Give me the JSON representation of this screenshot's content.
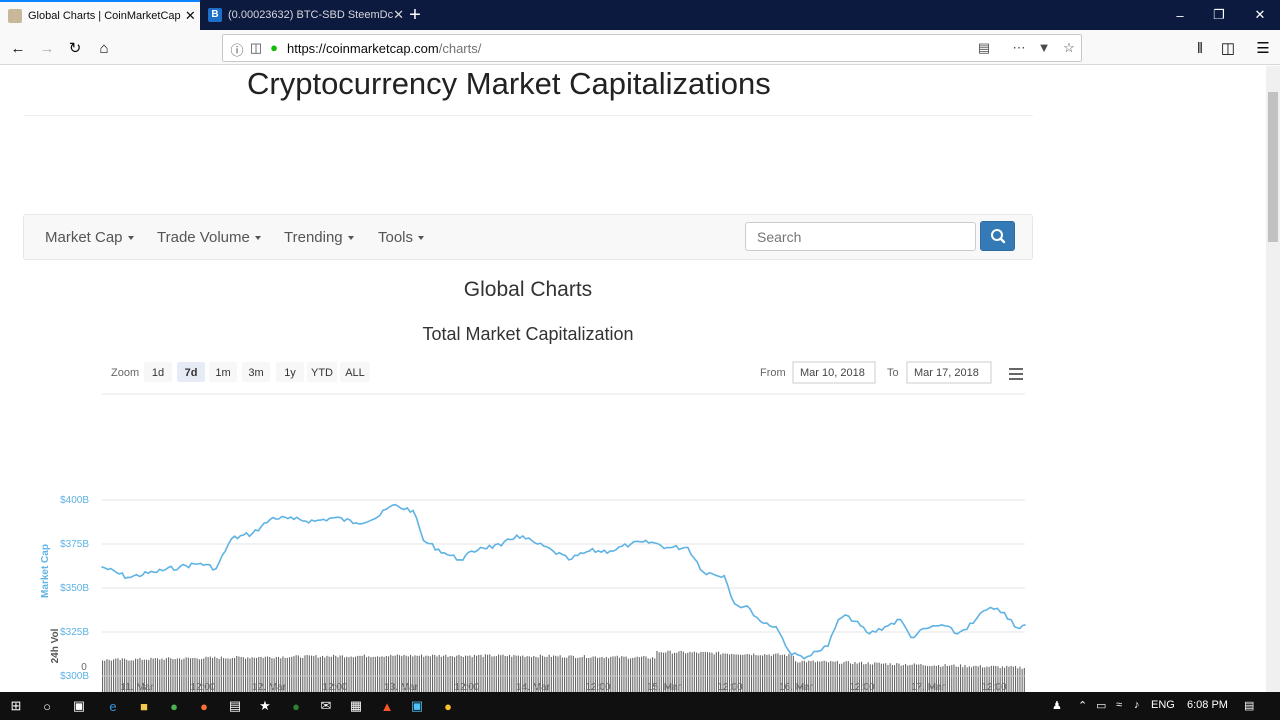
{
  "browser": {
    "tabs": [
      {
        "title": "Global Charts | CoinMarketCap",
        "active": true
      },
      {
        "title": "(0.00023632) BTC-SBD SteemDc",
        "active": false
      }
    ],
    "url_host": "https://coinmarketcap.com",
    "url_path": "/charts/",
    "close_glyph": "✕",
    "new_tab_glyph": "+"
  },
  "page": {
    "headline": "Cryptocurrency Market Capitalizations",
    "nav": {
      "items": [
        "Market Cap",
        "Trade Volume",
        "Trending",
        "Tools"
      ],
      "search_placeholder": "Search"
    },
    "section_title": "Global Charts",
    "chart_heading": "Total Market Capitalization",
    "zoom": {
      "label": "Zoom",
      "buttons": [
        "1d",
        "7d",
        "1m",
        "3m",
        "1y",
        "YTD",
        "ALL"
      ],
      "selected": "7d"
    },
    "range": {
      "from_label": "From",
      "from": "Mar 10, 2018",
      "to_label": "To",
      "to": "Mar 17, 2018"
    }
  },
  "chart_data": {
    "type": "line",
    "ylabel": "Market Cap",
    "ylabel_volume": "24h Vol",
    "volume_zero_label": "0",
    "y_ticks": [
      "$300B",
      "$325B",
      "$350B",
      "$375B",
      "$400B"
    ],
    "ylim": [
      300,
      400
    ],
    "y_units": "billion USD",
    "x_ticks": [
      "11. Mar",
      "12:00",
      "12. Mar",
      "12:00",
      "13. Mar",
      "12:00",
      "14. Mar",
      "12:00",
      "15. Mar",
      "12:00",
      "16. Mar",
      "12:00",
      "17. Mar",
      "12:00"
    ],
    "x_start": "Mar 10, 2018 12:00",
    "x_end": "Mar 17, 2018 22:00",
    "series": [
      {
        "name": "Market Cap",
        "color": "#5fb3e4",
        "points": [
          {
            "t": "Mar 10, 2018 12:00",
            "v": 362
          },
          {
            "t": "Mar 10, 2018 17:00",
            "v": 356
          },
          {
            "t": "Mar 10, 2018 22:00",
            "v": 359
          },
          {
            "t": "Mar 11, 2018 03:00",
            "v": 362
          },
          {
            "t": "Mar 11, 2018 07:00",
            "v": 364
          },
          {
            "t": "Mar 11, 2018 10:00",
            "v": 361
          },
          {
            "t": "Mar 11, 2018 13:00",
            "v": 378
          },
          {
            "t": "Mar 11, 2018 17:00",
            "v": 381
          },
          {
            "t": "Mar 11, 2018 21:00",
            "v": 390
          },
          {
            "t": "Mar 12, 2018 01:00",
            "v": 389
          },
          {
            "t": "Mar 12, 2018 05:00",
            "v": 388
          },
          {
            "t": "Mar 12, 2018 09:00",
            "v": 390
          },
          {
            "t": "Mar 12, 2018 13:00",
            "v": 387
          },
          {
            "t": "Mar 12, 2018 17:00",
            "v": 390
          },
          {
            "t": "Mar 12, 2018 20:00",
            "v": 397
          },
          {
            "t": "Mar 13, 2018 00:00",
            "v": 394
          },
          {
            "t": "Mar 13, 2018 02:00",
            "v": 377
          },
          {
            "t": "Mar 13, 2018 06:00",
            "v": 370
          },
          {
            "t": "Mar 13, 2018 09:00",
            "v": 366
          },
          {
            "t": "Mar 13, 2018 13:00",
            "v": 373
          },
          {
            "t": "Mar 13, 2018 17:00",
            "v": 374
          },
          {
            "t": "Mar 13, 2018 20:00",
            "v": 380
          },
          {
            "t": "Mar 14, 2018 00:00",
            "v": 375
          },
          {
            "t": "Mar 14, 2018 03:00",
            "v": 371
          },
          {
            "t": "Mar 14, 2018 06:00",
            "v": 366
          },
          {
            "t": "Mar 14, 2018 10:00",
            "v": 371
          },
          {
            "t": "Mar 14, 2018 14:00",
            "v": 371
          },
          {
            "t": "Mar 14, 2018 18:00",
            "v": 375
          },
          {
            "t": "Mar 14, 2018 22:00",
            "v": 376
          },
          {
            "t": "Mar 15, 2018 01:00",
            "v": 373
          },
          {
            "t": "Mar 15, 2018 05:00",
            "v": 373
          },
          {
            "t": "Mar 15, 2018 08:00",
            "v": 359
          },
          {
            "t": "Mar 15, 2018 12:00",
            "v": 357
          },
          {
            "t": "Mar 15, 2018 14:00",
            "v": 341
          },
          {
            "t": "Mar 15, 2018 17:00",
            "v": 338
          },
          {
            "t": "Mar 15, 2018 19:00",
            "v": 331
          },
          {
            "t": "Mar 15, 2018 22:00",
            "v": 328
          },
          {
            "t": "Mar 16, 2018 01:00",
            "v": 312
          },
          {
            "t": "Mar 16, 2018 04:00",
            "v": 311
          },
          {
            "t": "Mar 16, 2018 06:00",
            "v": 314
          },
          {
            "t": "Mar 16, 2018 08:00",
            "v": 317
          },
          {
            "t": "Mar 16, 2018 10:00",
            "v": 332
          },
          {
            "t": "Mar 16, 2018 12:00",
            "v": 334
          },
          {
            "t": "Mar 16, 2018 16:00",
            "v": 324
          },
          {
            "t": "Mar 16, 2018 19:00",
            "v": 328
          },
          {
            "t": "Mar 16, 2018 22:00",
            "v": 332
          },
          {
            "t": "Mar 17, 2018 00:00",
            "v": 322
          },
          {
            "t": "Mar 17, 2018 03:00",
            "v": 327
          },
          {
            "t": "Mar 17, 2018 06:00",
            "v": 329
          },
          {
            "t": "Mar 17, 2018 09:00",
            "v": 324
          },
          {
            "t": "Mar 17, 2018 12:00",
            "v": 330
          },
          {
            "t": "Mar 17, 2018 14:00",
            "v": 337
          },
          {
            "t": "Mar 17, 2018 16:00",
            "v": 338
          },
          {
            "t": "Mar 17, 2018 18:00",
            "v": 336
          },
          {
            "t": "Mar 17, 2018 20:00",
            "v": 328
          },
          {
            "t": "Mar 17, 2018 21:00",
            "v": 327
          },
          {
            "t": "Mar 17, 2018 22:00",
            "v": 329
          }
        ]
      }
    ],
    "volume": {
      "color": "#666666",
      "range_note": "daily 24h volume bars shown below main series; values not labeled"
    },
    "grid": true,
    "legend": "none"
  },
  "taskbar": {
    "lang": "ENG",
    "time": "6:08 PM"
  }
}
